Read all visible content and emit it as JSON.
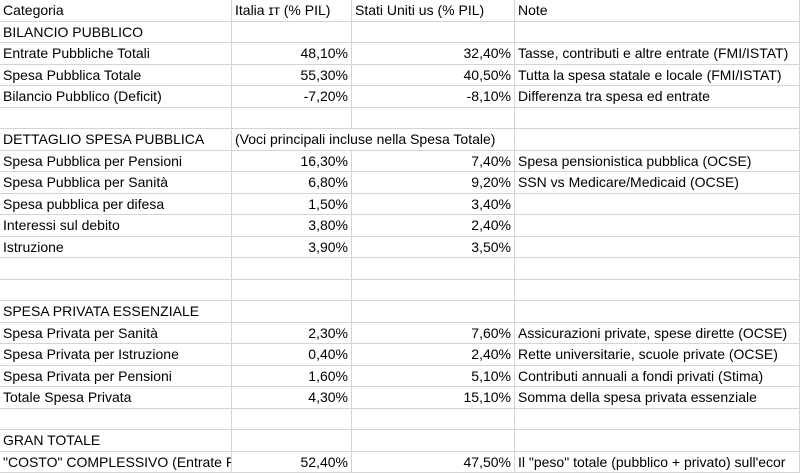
{
  "table": {
    "rows": [
      [
        "Categoria",
        "Italia ɪᴛ (% PIL)",
        "Stati Uniti us (% PIL)",
        "Note"
      ],
      [
        "BILANCIO PUBBLICO",
        null,
        null,
        null
      ],
      [
        "Entrate Pubbliche Totali",
        "48,10%",
        "32,40%",
        "Tasse, contributi e altre entrate (FMI/ISTAT)"
      ],
      [
        "Spesa Pubblica Totale",
        "55,30%",
        "40,50%",
        "Tutta la spesa statale e locale (FMI/ISTAT)"
      ],
      [
        "Bilancio Pubblico (Deficit)",
        "-7,20%",
        "-8,10%",
        "Differenza tra spesa ed entrate"
      ],
      [
        null,
        null,
        null,
        null
      ],
      [
        "DETTAGLIO SPESA PUBBLICA",
        "(Voci principali incluse nella Spesa Totale)",
        null,
        null
      ],
      [
        "Spesa Pubblica per Pensioni",
        "16,30%",
        "7,40%",
        "Spesa pensionistica pubblica (OCSE)"
      ],
      [
        "Spesa Pubblica per Sanità",
        "6,80%",
        "9,20%",
        "SSN vs Medicare/Medicaid (OCSE)"
      ],
      [
        "Spesa pubblica per difesa",
        "1,50%",
        "3,40%",
        null
      ],
      [
        "Interessi sul debito",
        "3,80%",
        "2,40%",
        null
      ],
      [
        "Istruzione",
        "3,90%",
        "3,50%",
        null
      ],
      [
        null,
        null,
        null,
        null
      ],
      [
        null,
        null,
        null,
        null
      ],
      [
        "SPESA PRIVATA ESSENZIALE",
        null,
        null,
        null
      ],
      [
        "Spesa Privata per Sanità",
        "2,30%",
        "7,60%",
        "Assicurazioni private, spese dirette (OCSE)"
      ],
      [
        "Spesa Privata per Istruzione",
        "0,40%",
        "2,40%",
        "Rette universitarie, scuole private (OCSE)"
      ],
      [
        "Spesa Privata per Pensioni",
        "1,60%",
        "5,10%",
        "Contributi annuali a fondi privati (Stima)"
      ],
      [
        "Totale Spesa Privata",
        "4,30%",
        "15,10%",
        "Somma della spesa privata essenziale"
      ],
      [
        null,
        null,
        null,
        null
      ],
      [
        "GRAN TOTALE",
        null,
        null,
        null
      ],
      [
        "\"COSTO\" COMPLESSIVO (Entrate P",
        "52,40%",
        "47,50%",
        "Il \"peso\" totale (pubblico + privato) sull'ecor"
      ]
    ]
  }
}
